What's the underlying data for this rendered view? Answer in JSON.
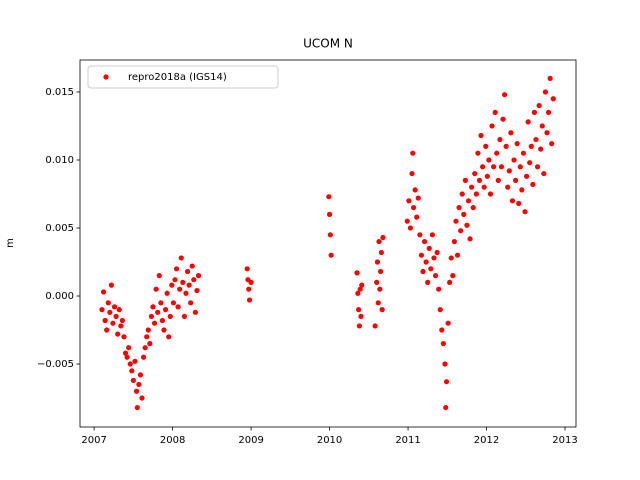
{
  "chart_data": {
    "type": "scatter",
    "title": "UCOM N",
    "ylabel": "m",
    "xlim": [
      2006.82,
      2013.14
    ],
    "xticks": [
      2007,
      2008,
      2009,
      2010,
      2011,
      2012,
      2013
    ],
    "ylim": [
      -0.00963,
      0.01735
    ],
    "yticks": [
      {
        "value": -0.005,
        "label": "−0.005"
      },
      {
        "value": 0,
        "label": "0.000"
      },
      0.005,
      {
        "value": 0.01,
        "label": "0.010"
      },
      0.015
    ],
    "grid": false,
    "legend": "upper left",
    "series": [
      {
        "name": "repro2018a (IGS14)",
        "color": "#ff0000",
        "x": [
          2007.1,
          2007.12,
          2007.14,
          2007.16,
          2007.18,
          2007.2,
          2007.22,
          2007.24,
          2007.26,
          2007.28,
          2007.3,
          2007.32,
          2007.34,
          2007.36,
          2007.38,
          2007.4,
          2007.42,
          2007.44,
          2007.46,
          2007.48,
          2007.5,
          2007.52,
          2007.54,
          2007.55,
          2007.57,
          2007.59,
          2007.61,
          2007.63,
          2007.65,
          2007.67,
          2007.69,
          2007.71,
          2007.73,
          2007.75,
          2007.77,
          2007.79,
          2007.81,
          2007.83,
          2007.85,
          2007.87,
          2007.89,
          2007.91,
          2007.93,
          2007.95,
          2007.97,
          2007.99,
          2008.01,
          2008.03,
          2008.05,
          2008.07,
          2008.09,
          2008.11,
          2008.13,
          2008.15,
          2008.17,
          2008.19,
          2008.21,
          2008.23,
          2008.25,
          2008.27,
          2008.29,
          2008.31,
          2008.33,
          2008.95,
          2008.96,
          2008.97,
          2008.98,
          2009.0,
          2009.99,
          2010.0,
          2010.01,
          2010.02,
          2010.35,
          2010.36,
          2010.37,
          2010.38,
          2010.39,
          2010.4,
          2010.41,
          2010.58,
          2010.6,
          2010.61,
          2010.62,
          2010.63,
          2010.64,
          2010.65,
          2010.66,
          2010.67,
          2010.68,
          2010.99,
          2011.01,
          2011.03,
          2011.05,
          2011.06,
          2011.07,
          2011.09,
          2011.11,
          2011.13,
          2011.15,
          2011.17,
          2011.19,
          2011.21,
          2011.23,
          2011.25,
          2011.27,
          2011.29,
          2011.31,
          2011.33,
          2011.35,
          2011.37,
          2011.39,
          2011.41,
          2011.43,
          2011.45,
          2011.47,
          2011.48,
          2011.49,
          2011.51,
          2011.53,
          2011.55,
          2011.57,
          2011.59,
          2011.61,
          2011.63,
          2011.65,
          2011.67,
          2011.69,
          2011.71,
          2011.73,
          2011.75,
          2011.77,
          2011.79,
          2011.81,
          2011.83,
          2011.85,
          2011.87,
          2011.89,
          2011.91,
          2011.93,
          2011.95,
          2011.97,
          2011.99,
          2012.01,
          2012.03,
          2012.05,
          2012.07,
          2012.09,
          2012.11,
          2012.13,
          2012.15,
          2012.17,
          2012.19,
          2012.21,
          2012.23,
          2012.25,
          2012.27,
          2012.29,
          2012.31,
          2012.33,
          2012.35,
          2012.37,
          2012.39,
          2012.41,
          2012.43,
          2012.45,
          2012.47,
          2012.49,
          2012.51,
          2012.53,
          2012.55,
          2012.57,
          2012.59,
          2012.61,
          2012.63,
          2012.65,
          2012.67,
          2012.69,
          2012.71,
          2012.73,
          2012.75,
          2012.77,
          2012.79,
          2012.81,
          2012.83,
          2012.85
        ],
        "values": [
          -0.001,
          0.0003,
          -0.0018,
          -0.0025,
          -0.0005,
          -0.0012,
          0.0008,
          -0.002,
          -0.0008,
          -0.0015,
          -0.0028,
          -0.001,
          -0.0022,
          -0.0018,
          -0.003,
          -0.0042,
          -0.0045,
          -0.0038,
          -0.005,
          -0.0055,
          -0.0062,
          -0.0048,
          -0.007,
          -0.0082,
          -0.0065,
          -0.0058,
          -0.0075,
          -0.0045,
          -0.0038,
          -0.003,
          -0.0025,
          -0.0035,
          -0.0015,
          -0.0008,
          -0.002,
          0.0005,
          -0.0012,
          0.0015,
          -0.0005,
          -0.0018,
          -0.0025,
          -0.001,
          0.0002,
          -0.003,
          -0.0015,
          0.0008,
          -0.0005,
          0.0012,
          0.002,
          -0.0008,
          0.0005,
          0.0028,
          0.001,
          -0.0015,
          0.0002,
          0.0018,
          0.0008,
          -0.0005,
          0.0022,
          0.0012,
          -0.0012,
          0.0004,
          0.0015,
          0.002,
          0.0012,
          0.0005,
          -0.0003,
          0.001,
          0.0073,
          0.006,
          0.0045,
          0.003,
          0.0017,
          0.0002,
          -0.001,
          -0.0022,
          0.0005,
          -0.0015,
          0.0008,
          -0.0022,
          0.001,
          0.0025,
          -0.0005,
          0.004,
          0.0005,
          0.0018,
          0.0032,
          -0.001,
          0.0043,
          0.0055,
          0.007,
          0.005,
          0.009,
          0.0105,
          0.0065,
          0.0078,
          0.0058,
          0.0072,
          0.0045,
          0.003,
          0.0018,
          0.004,
          0.0025,
          0.001,
          0.0035,
          0.002,
          0.0045,
          0.0028,
          0.0015,
          0.0032,
          0.0005,
          -0.001,
          -0.0025,
          -0.0035,
          -0.005,
          -0.0082,
          -0.0063,
          -0.002,
          0.001,
          0.0028,
          0.0015,
          0.004,
          0.0055,
          0.003,
          0.0065,
          0.0048,
          0.0075,
          0.006,
          0.0085,
          0.0052,
          0.007,
          0.0042,
          0.008,
          0.0065,
          0.009,
          0.0075,
          0.0105,
          0.0085,
          0.0118,
          0.0095,
          0.008,
          0.011,
          0.0088,
          0.01,
          0.0075,
          0.0125,
          0.0095,
          0.0135,
          0.0105,
          0.0085,
          0.0115,
          0.0095,
          0.013,
          0.0148,
          0.011,
          0.008,
          0.0092,
          0.012,
          0.007,
          0.01,
          0.0085,
          0.0112,
          0.0068,
          0.0095,
          0.0078,
          0.0105,
          0.0062,
          0.0088,
          0.0128,
          0.0098,
          0.011,
          0.0082,
          0.0135,
          0.0115,
          0.0095,
          0.014,
          0.0108,
          0.0125,
          0.009,
          0.015,
          0.012,
          0.0135,
          0.016,
          0.0112,
          0.0145
        ]
      }
    ]
  }
}
